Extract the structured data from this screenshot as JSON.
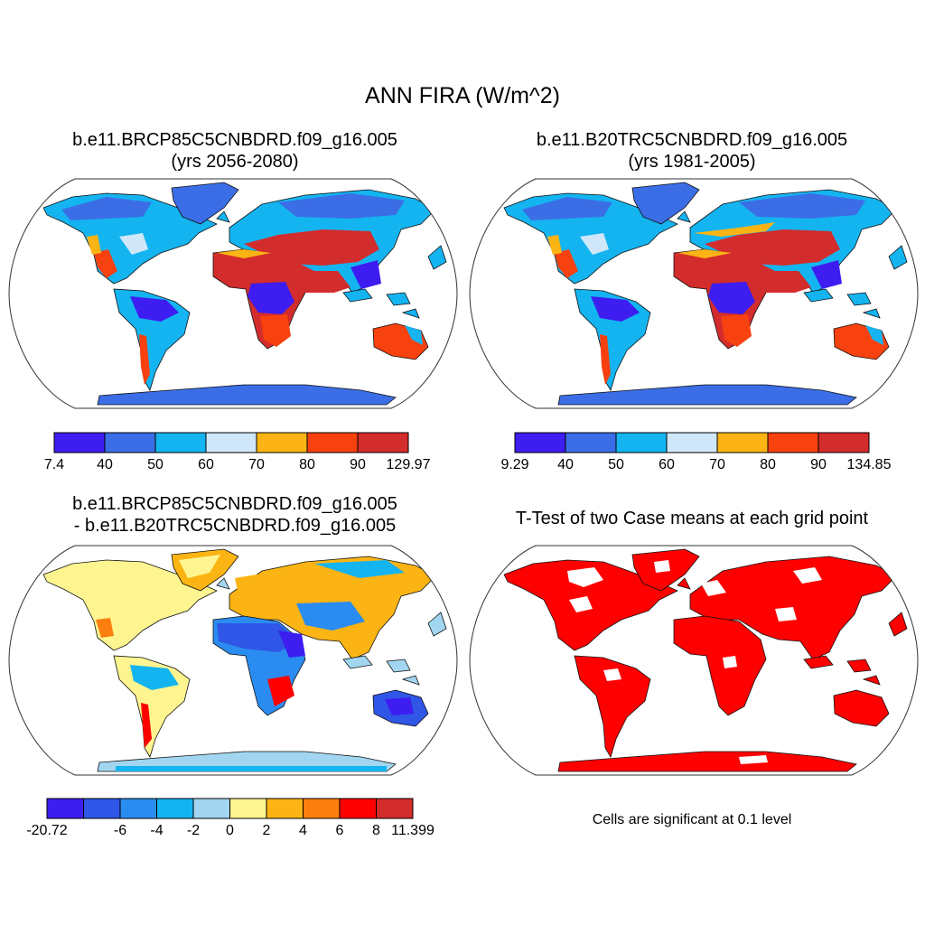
{
  "title": "ANN FIRA (W/m^2)",
  "panels": [
    {
      "title": "b.e11.BRCP85C5CNBDRD.f09_g16.005\n(yrs 2056-2080)",
      "colorbar": {
        "colors": [
          "#3d1df0",
          "#3b6ee6",
          "#14b4f0",
          "#cfe7f8",
          "#fbb414",
          "#f7410f",
          "#d32c2c"
        ],
        "labels": [
          "7.4",
          "40",
          "50",
          "60",
          "70",
          "80",
          "90",
          "129.97"
        ]
      }
    },
    {
      "title": "b.e11.B20TRC5CNBDRD.f09_g16.005\n(yrs 1981-2005)",
      "colorbar": {
        "colors": [
          "#3d1df0",
          "#3b6ee6",
          "#14b4f0",
          "#cfe7f8",
          "#fbb414",
          "#f7410f",
          "#d32c2c"
        ],
        "labels": [
          "9.29",
          "40",
          "50",
          "60",
          "70",
          "80",
          "90",
          "134.85"
        ]
      }
    },
    {
      "title": "b.e11.BRCP85C5CNBDRD.f09_g16.005\n- b.e11.B20TRC5CNBDRD.f09_g16.005",
      "colorbar": {
        "colors": [
          "#3d1df0",
          "#2f56e6",
          "#2a8cf0",
          "#14b4f0",
          "#a2d6f0",
          "#fff590",
          "#fbb414",
          "#fb7e0e",
          "#ff0000",
          "#d32c2c"
        ],
        "labels": [
          "-20.72",
          "",
          "-6",
          "-4",
          "-2",
          "0",
          "2",
          "4",
          "6",
          "8",
          "11.399"
        ]
      }
    },
    {
      "title": "T-Test of two Case means at each grid point",
      "footnote": "Cells are significant at 0.1 level",
      "significance_color": "#ff0000"
    }
  ]
}
